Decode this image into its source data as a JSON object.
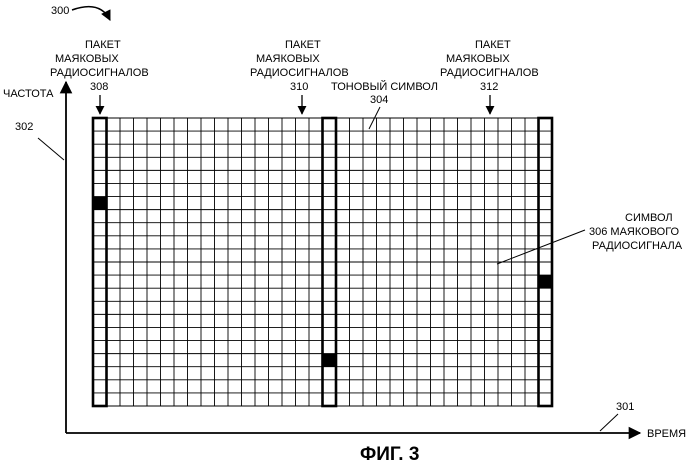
{
  "figure_number": "300",
  "caption": "ФИГ. 3",
  "axes": {
    "y_label": "ЧАСТОТА",
    "y_ref": "302",
    "x_label": "ВРЕМЯ",
    "x_ref": "301"
  },
  "grid": {
    "columns": 33,
    "rows": 22,
    "line_color": "#000000"
  },
  "tone_symbol": {
    "label": "ТОНОВЫЙ СИМВОЛ",
    "ref": "304"
  },
  "beacon_bursts": [
    {
      "lines": [
        "ПАКЕТ",
        "МАЯКОВЫХ",
        "РАДИОСИГНАЛОВ"
      ],
      "ref": "308",
      "column": 0,
      "beacon_row": 6
    },
    {
      "lines": [
        "ПАКЕТ",
        "МАЯКОВЫХ",
        "РАДИОСИГНАЛОВ"
      ],
      "ref": "310",
      "column": 17,
      "beacon_row": 18
    },
    {
      "lines": [
        "ПАКЕТ",
        "МАЯКОВЫХ",
        "РАДИОСИГНАЛОВ"
      ],
      "ref": "312",
      "column": 33,
      "beacon_row": 12
    }
  ],
  "beacon_symbol": {
    "lines": [
      "СИМВОЛ",
      "306 МАЯКОВОГО",
      "РАДИОСИГНАЛА"
    ]
  }
}
